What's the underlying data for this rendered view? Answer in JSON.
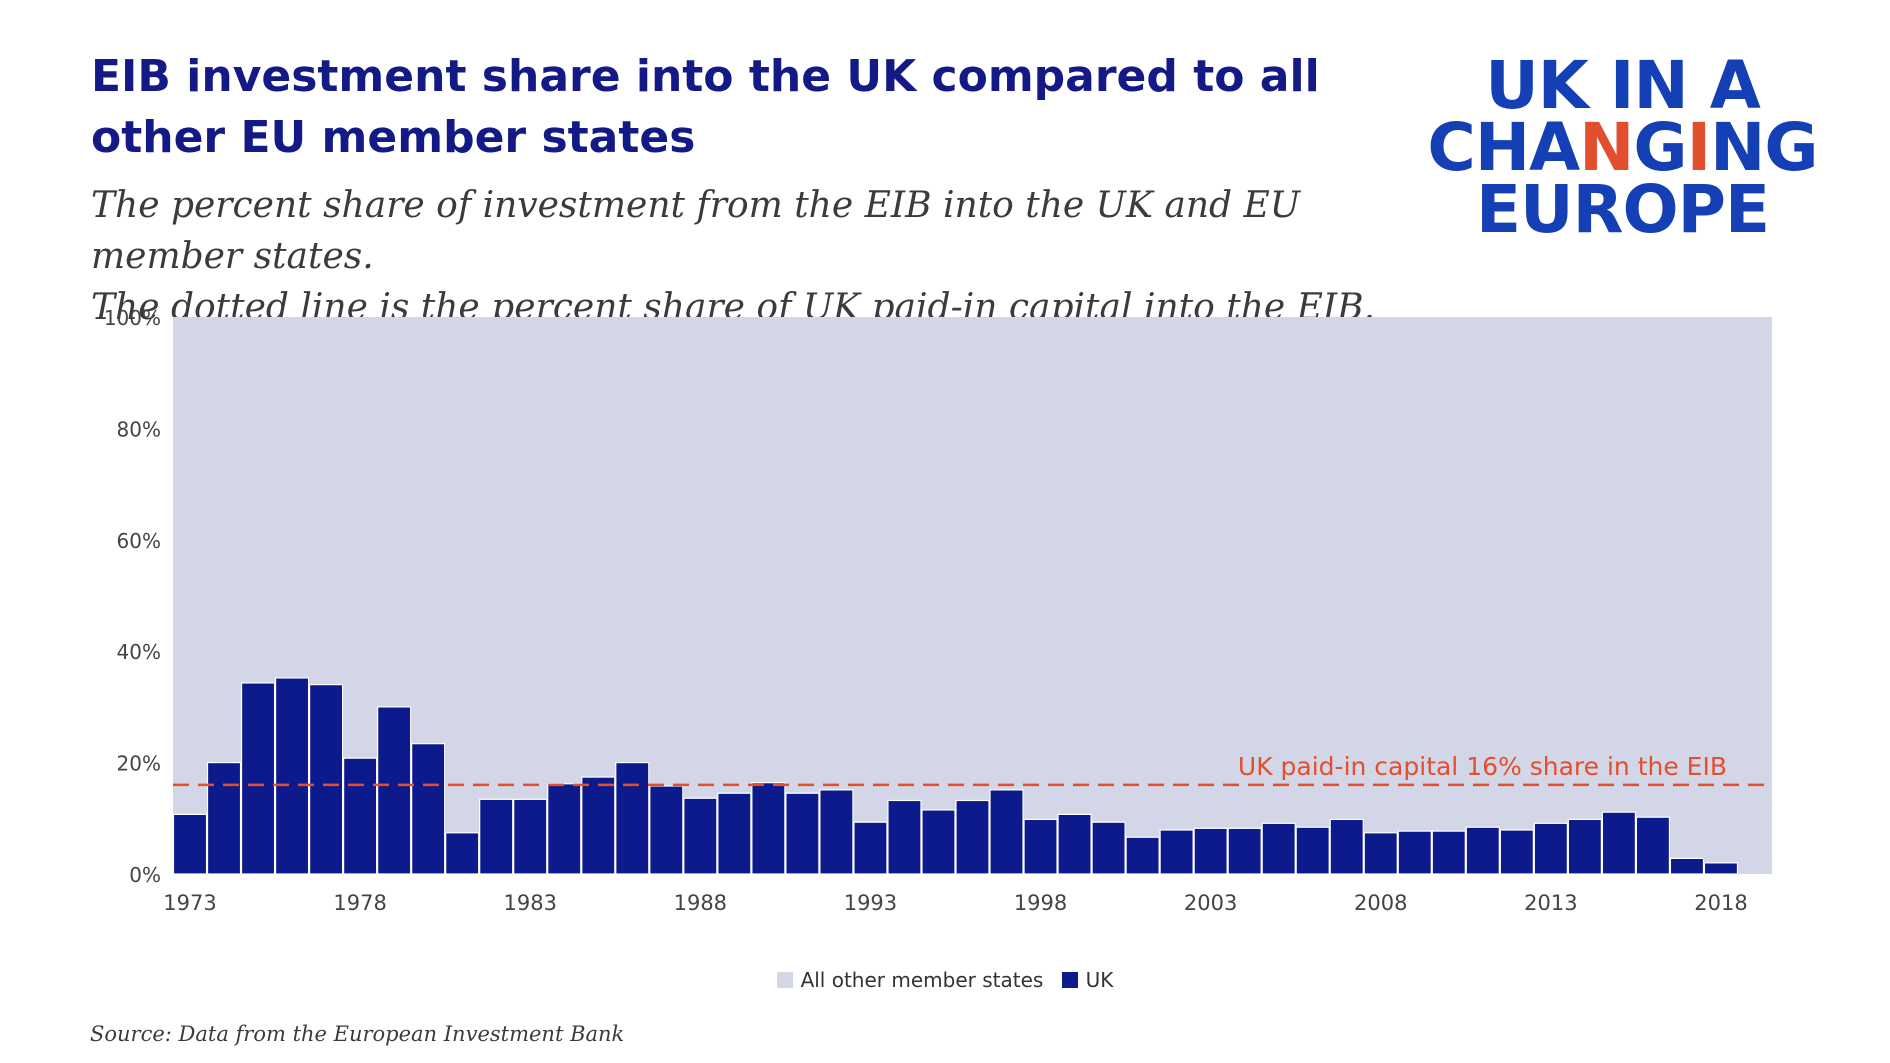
{
  "header": {
    "title": "EIB investment share into the UK compared to all other EU member states",
    "subtitle_line1": "The percent share of investment from the EIB into the UK and EU member states.",
    "subtitle_line2": "The dotted line is the percent share of UK paid-in capital into the EIB."
  },
  "logo": {
    "line1": "UK IN A",
    "line2_a": "CHA",
    "line2_b": "N",
    "line2_c": "G",
    "line2_d": "I",
    "line2_e": "NG",
    "line3": "EUROPE"
  },
  "source": "Source: Data from the European Investment Bank",
  "colors": {
    "uk": "#0d1a8c",
    "others": "#d3d6e6",
    "reference_line": "#e24f2f",
    "title": "#131a86",
    "logo_blue": "#1540b5"
  },
  "chart_data": {
    "type": "bar",
    "stacked": true,
    "x": [
      1973,
      1974,
      1975,
      1976,
      1977,
      1978,
      1979,
      1980,
      1981,
      1982,
      1983,
      1984,
      1985,
      1986,
      1987,
      1988,
      1989,
      1990,
      1991,
      1992,
      1993,
      1994,
      1995,
      1996,
      1997,
      1998,
      1999,
      2000,
      2001,
      2002,
      2003,
      2004,
      2005,
      2006,
      2007,
      2008,
      2009,
      2010,
      2011,
      2012,
      2013,
      2014,
      2015,
      2016,
      2017,
      2018,
      2019
    ],
    "x_ticks": [
      "1973",
      "1978",
      "1983",
      "1988",
      "1993",
      "1998",
      "2003",
      "2008",
      "2013",
      "2018"
    ],
    "x_tick_values": [
      1973,
      1978,
      1983,
      1988,
      1993,
      1998,
      2003,
      2008,
      2013,
      2018
    ],
    "series": [
      {
        "name": "UK",
        "values": [
          10.7,
          20.0,
          34.3,
          35.2,
          34.0,
          20.8,
          30.0,
          23.4,
          7.4,
          13.4,
          13.4,
          16.2,
          17.4,
          20.0,
          15.8,
          13.6,
          14.5,
          16.4,
          14.5,
          15.1,
          9.3,
          13.2,
          11.5,
          13.2,
          15.1,
          9.8,
          10.7,
          9.3,
          6.6,
          7.9,
          8.2,
          8.2,
          9.1,
          8.4,
          9.8,
          7.4,
          7.7,
          7.7,
          8.4,
          7.9,
          9.1,
          9.8,
          11.1,
          10.2,
          2.8,
          2.0,
          0
        ]
      },
      {
        "name": "All other member states",
        "values": "remainder to 100%"
      }
    ],
    "legend": [
      "All other member states",
      "UK"
    ],
    "legend_position": "bottom-center",
    "y_ticks": [
      "100%",
      "80%",
      "60%",
      "40%",
      "20%",
      "0%"
    ],
    "y_tick_values": [
      100,
      80,
      60,
      40,
      20,
      0
    ],
    "ylim": [
      0,
      100
    ],
    "reference_line": {
      "value": 16,
      "label": "UK paid-in capital 16% share in the EIB",
      "style": "dashed"
    },
    "grid": false
  }
}
